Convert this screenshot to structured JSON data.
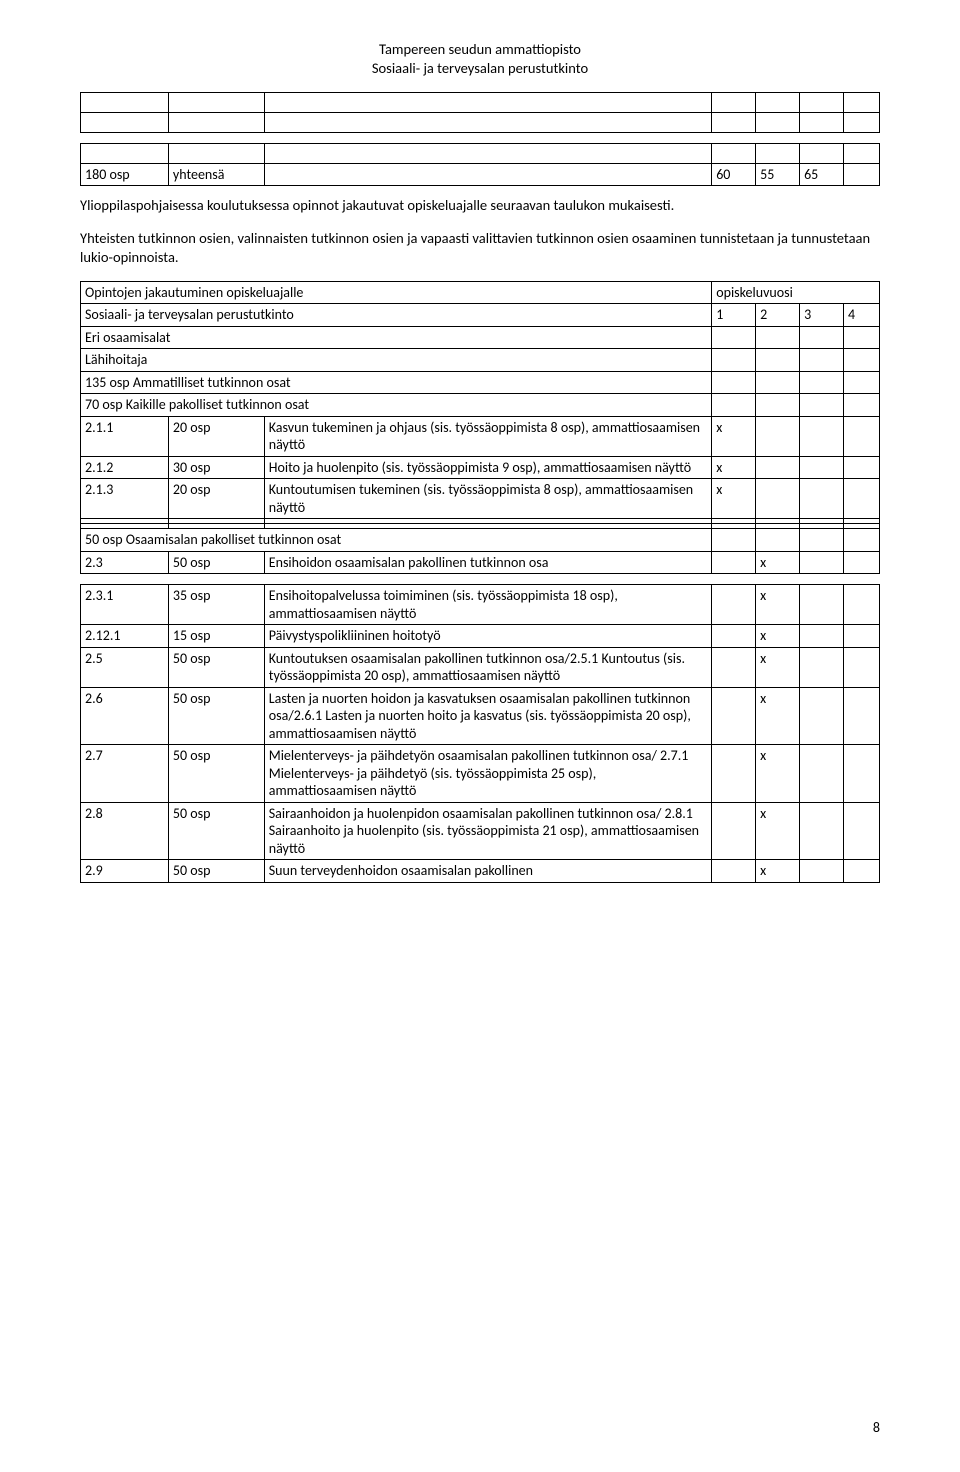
{
  "header": {
    "line1": "Tampereen seudun ammattiopisto",
    "line2": "Sosiaali- ja terveysalan perustutkinto"
  },
  "topTable": {
    "r1c1": "180 osp",
    "r1c2": "yhteensä",
    "r1c4": "60",
    "r1c5": "55",
    "r1c6": "65"
  },
  "para1": "Ylioppilaspohjaisessa koulutuksessa opinnot jakautuvat opiskeluajalle seuraavan taulukon mukaisesti.",
  "para2": "Yhteisten tutkinnon osien, valinnaisten tutkinnon osien ja vapaasti valittavien tutkinnon osien osaaminen tunnistetaan ja tunnustetaan lukio-opinnoista.",
  "midTable": {
    "r0c1": "Opintojen jakautuminen opiskeluajalle",
    "r0c2": "opiskeluvuosi",
    "r1c1": "Sosiaali- ja terveysalan perustutkinto",
    "r1a": "1",
    "r1b": "2",
    "r1c": "3",
    "r1d": "4",
    "r2c1": "Eri osaamisalat",
    "r3c1": "Lähihoitaja",
    "r4c1": "135 osp  Ammatilliset tutkinnon osat",
    "r5c1": "70 osp   Kaikille pakolliset tutkinnon osat",
    "r6a": "2.1.1",
    "r6b": "20 osp",
    "r6c": "Kasvun tukeminen ja ohjaus (sis. työssäoppimista 8 osp), ammattiosaamisen näyttö",
    "r6x": "x",
    "r7a": "2.1.2",
    "r7b": "30 osp",
    "r7c": "Hoito ja huolenpito (sis. työssäoppimista 9 osp), ammattiosaamisen näyttö",
    "r7x": "x",
    "r8a": "2.1.3",
    "r8b": "20 osp",
    "r8c": "Kuntoutumisen tukeminen (sis. työssäoppimista 8 osp), ammattiosaamisen näyttö",
    "r8x": "x"
  },
  "lowTable": {
    "r0c1": "50 osp Osaamisalan pakolliset tutkinnon osat",
    "r1a": "2.3",
    "r1b": "50 osp",
    "r1c": "Ensihoidon osaamisalan pakollinen tutkinnon osa",
    "r1x": "x",
    "r2a": "2.3.1",
    "r2b": "35 osp",
    "r2c": "Ensihoitopalvelussa toimiminen (sis. työssäoppimista 18 osp), ammattiosaamisen näyttö",
    "r2x": "x",
    "r3a": "2.12.1",
    "r3b": "15 osp",
    "r3c": "Päivystyspolikliininen hoitotyö",
    "r3x": "x",
    "r4a": "2.5",
    "r4b": "50 osp",
    "r4c": "Kuntoutuksen osaamisalan pakollinen tutkinnon osa/2.5.1 Kuntoutus (sis. työssäoppimista 20 osp), ammattiosaamisen näyttö",
    "r4x": "x",
    "r5a": "2.6",
    "r5b": "50 osp",
    "r5c": "Lasten ja nuorten hoidon ja kasvatuksen osaamisalan pakollinen tutkinnon osa/2.6.1 Lasten ja nuorten hoito ja kasvatus (sis. työssäoppimista 20 osp), ammattiosaamisen näyttö",
    "r5x": "x",
    "r6a": "2.7",
    "r6b": "50 osp",
    "r6c": "Mielenterveys- ja päihdetyön osaamisalan pakollinen tutkinnon osa/ 2.7.1 Mielenterveys- ja päihdetyö (sis. työssäoppimista 25 osp), ammattiosaamisen näyttö",
    "r6x": "x",
    "r7a": "2.8",
    "r7b": "50 osp",
    "r7c": "Sairaanhoidon ja huolenpidon osaamisalan pakollinen tutkinnon osa/ 2.8.1 Sairaanhoito ja huolenpito (sis. työssäoppimista 21 osp), ammattiosaamisen näyttö",
    "r7x": "x",
    "r8a": "2.9",
    "r8b": "50 osp",
    "r8c": "Suun terveydenhoidon osaamisalan pakollinen",
    "r8x": "x"
  },
  "pageNum": "8"
}
